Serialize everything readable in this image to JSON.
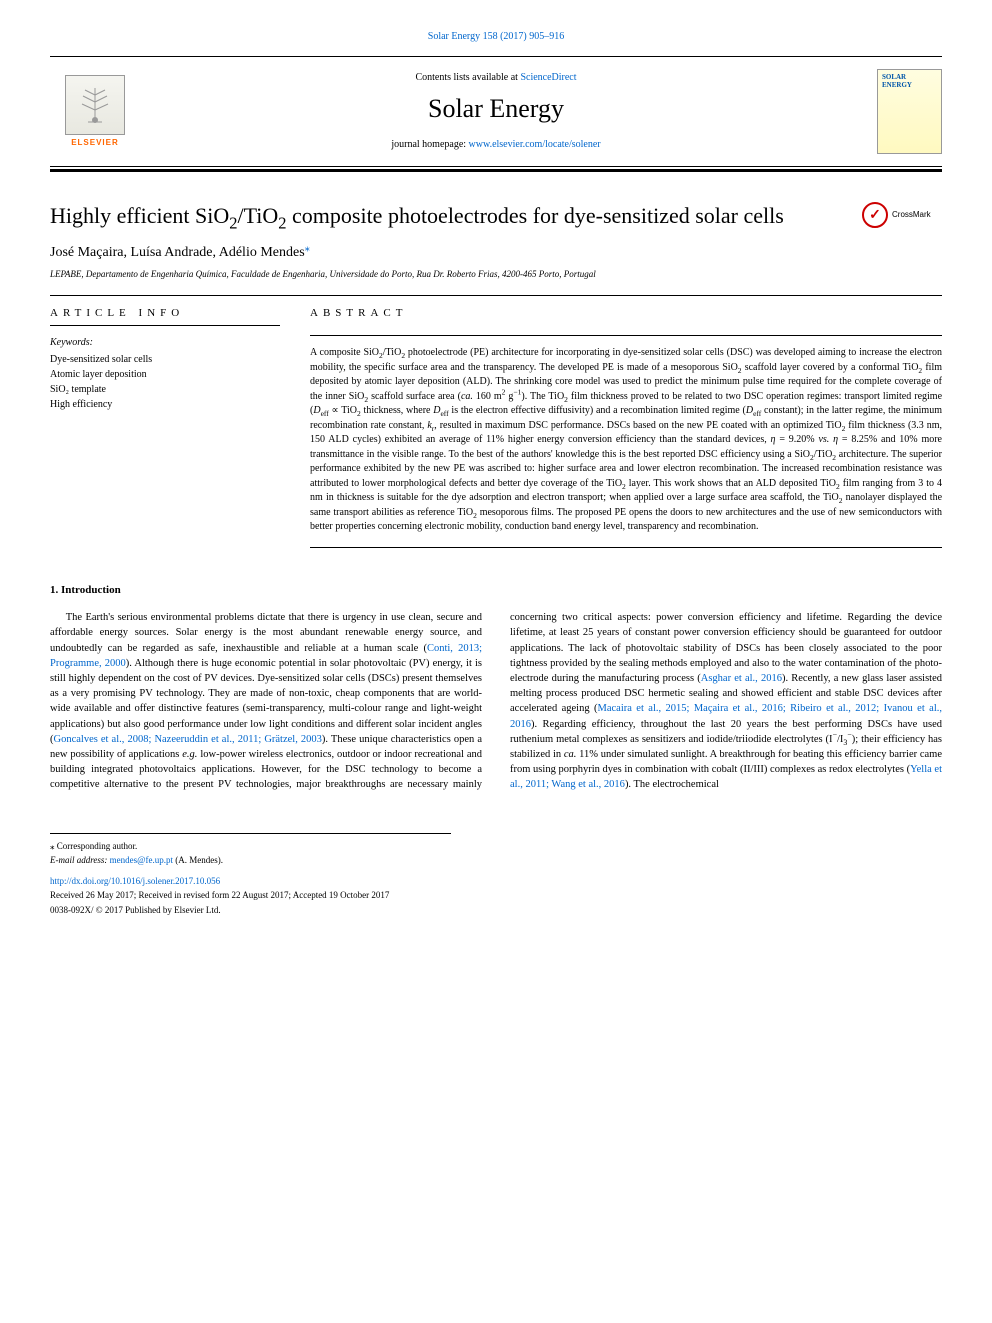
{
  "header": {
    "top_citation": "Solar Energy 158 (2017) 905–916",
    "contents_prefix": "Contents lists available at ",
    "contents_link": "ScienceDirect",
    "journal_name": "Solar Energy",
    "homepage_prefix": "journal homepage: ",
    "homepage_link": "www.elsevier.com/locate/solener",
    "publisher": "ELSEVIER",
    "cover_label": "SOLAR ENERGY"
  },
  "article": {
    "title_html": "Highly efficient SiO<sub>2</sub>/TiO<sub>2</sub> composite photoelectrodes for dye-sensitized solar cells",
    "crossmark": "CrossMark",
    "authors_html": "José Maçaira, Luísa Andrade, Adélio Mendes<sup class='corr-mark'>⁎</sup>",
    "affiliation": "LEPABE, Departamento de Engenharia Química, Faculdade de Engenharia, Universidade do Porto, Rua Dr. Roberto Frias, 4200-465 Porto, Portugal"
  },
  "info": {
    "header": "ARTICLE INFO",
    "keywords_label": "Keywords:",
    "keywords": "Dye-sensitized solar cells\nAtomic layer deposition\nSiO₂ template\nHigh efficiency"
  },
  "abstract": {
    "header": "ABSTRACT",
    "text_html": "A composite SiO<sub>2</sub>/TiO<sub>2</sub> photoelectrode (PE) architecture for incorporating in dye-sensitized solar cells (DSC) was developed aiming to increase the electron mobility, the specific surface area and the transparency. The developed PE is made of a mesoporous SiO<sub>2</sub> scaffold layer covered by a conformal TiO<sub>2</sub> film deposited by atomic layer deposition (ALD). The shrinking core model was used to predict the minimum pulse time required for the complete coverage of the inner SiO<sub>2</sub> scaffold surface area (<i>ca.</i> 160 m<sup>2</sup> g<sup>−1</sup>). The TiO<sub>2</sub> film thickness proved to be related to two DSC operation regimes: transport limited regime (<i>D</i><sub>eff</sub> ∝ TiO<sub>2</sub> thickness, where <i>D</i><sub>eff</sub> is the electron effective diffusivity) and a recombination limited regime (<i>D</i><sub>eff</sub> constant); in the latter regime, the minimum recombination rate constant, <i>k</i><sub>r</sub>, resulted in maximum DSC performance. DSCs based on the new PE coated with an optimized TiO<sub>2</sub> film thickness (3.3 nm, 150 ALD cycles) exhibited an average of 11% higher energy conversion efficiency than the standard devices, <i>η</i> = 9.20% <i>vs.</i> <i>η</i> = 8.25% and 10% more transmittance in the visible range. To the best of the authors' knowledge this is the best reported DSC efficiency using a SiO<sub>2</sub>/TiO<sub>2</sub> architecture. The superior performance exhibited by the new PE was ascribed to: higher surface area and lower electron recombination. The increased recombination resistance was attributed to lower morphological defects and better dye coverage of the TiO<sub>2</sub> layer. This work shows that an ALD deposited TiO<sub>2</sub> film ranging from 3 to 4 nm in thickness is suitable for the dye adsorption and electron transport; when applied over a large surface area scaffold, the TiO<sub>2</sub> nanolayer displayed the same transport abilities as reference TiO<sub>2</sub> mesoporous films. The proposed PE opens the doors to new architectures and the use of new semiconductors with better properties concerning electronic mobility, conduction band energy level, transparency and recombination."
  },
  "body": {
    "heading": "1. Introduction",
    "text_html": "The Earth's serious environmental problems dictate that there is urgency in use clean, secure and affordable energy sources. Solar energy is the most abundant renewable energy source, and undoubtedly can be regarded as safe, inexhaustible and reliable at a human scale (<a href='#'>Conti, 2013; Programme, 2000</a>). Although there is huge economic potential in solar photovoltaic (PV) energy, it is still highly dependent on the cost of PV devices. Dye-sensitized solar cells (DSCs) present themselves as a very promising PV technology. They are made of non-toxic, cheap components that are world-wide available and offer distinctive features (semi-transparency, multi-colour range and light-weight applications) but also good performance under low light conditions and different solar incident angles (<a href='#'>Goncalves et al., 2008; Nazeeruddin et al., 2011; Grätzel, 2003</a>). These unique characteristics open a new possibility of applications <i>e.g.</i> low-power wireless electronics, outdoor or indoor recreational and building integrated photovoltaics applications. However, for the DSC technology to become a competitive alternative to the present PV technologies, major breakthroughs are necessary mainly concerning two critical aspects: power conversion efficiency and lifetime. Regarding the device lifetime, at least 25 years of constant power conversion efficiency should be guaranteed for outdoor applications. The lack of photovoltaic stability of DSCs has been closely associated to the poor tightness provided by the sealing methods employed and also to the water contamination of the photo-electrode during the manufacturing process (<a href='#'>Asghar et al., 2016</a>). Recently, a new glass laser assisted melting process produced DSC hermetic sealing and showed efficient and stable DSC devices after accelerated ageing (<a href='#'>Macaira et al., 2015; Maçaira et al., 2016; Ribeiro et al., 2012; Ivanou et al., 2016</a>). Regarding efficiency, throughout the last 20 years the best performing DSCs have used ruthenium metal complexes as sensitizers and iodide/triiodide electrolytes (I<sup>−</sup>/I<sub>3</sub><sup>−</sup>); their efficiency has stabilized in <i>ca.</i> 11% under simulated sunlight. A breakthrough for beating this efficiency barrier came from using porphyrin dyes in combination with cobalt (II/III) complexes as redox electrolytes (<a href='#'>Yella et al., 2011; Wang et al., 2016</a>). The electrochemical"
  },
  "footer": {
    "corresponding": "⁎ Corresponding author.",
    "email_label": "E-mail address:",
    "email": "mendes@fe.up.pt",
    "email_name": "(A. Mendes).",
    "doi": "http://dx.doi.org/10.1016/j.solener.2017.10.056",
    "received": "Received 26 May 2017; Received in revised form 22 August 2017; Accepted 19 October 2017",
    "copyright": "0038-092X/ © 2017 Published by Elsevier Ltd."
  },
  "colors": {
    "link": "#0066cc",
    "elsevier_orange": "#ff6600",
    "crossmark_red": "#cc0000",
    "text": "#000000",
    "background": "#ffffff"
  }
}
